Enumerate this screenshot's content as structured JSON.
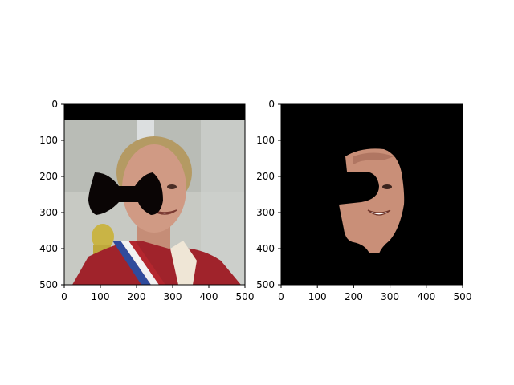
{
  "figure": {
    "background": "#ffffff",
    "axis_color": "#000000"
  },
  "chart_data": [
    {
      "type": "image",
      "panel": "left",
      "content": "portrait-photo-with-mask",
      "xlim": [
        0,
        500
      ],
      "ylim": [
        500,
        0
      ],
      "xticks": [
        0,
        100,
        200,
        300,
        400,
        500
      ],
      "yticks": [
        0,
        100,
        200,
        300,
        400,
        500
      ],
      "xtick_labels": [
        "0",
        "100",
        "200",
        "300",
        "400",
        "500"
      ],
      "ytick_labels": [
        "0",
        "100",
        "200",
        "300",
        "400",
        "500"
      ],
      "colors": {
        "top_band": "#000000",
        "background": "#c7c9c3",
        "pillar": "#dcdfe0",
        "skin": "#d09a84",
        "hair": "#b49a63",
        "jersey": "#a0232b",
        "stripe_blue": "#2f4b9c",
        "stripe_white": "#f2f2f2",
        "mask": "#0a0505"
      },
      "mask_shape": "bowtie"
    },
    {
      "type": "image",
      "panel": "right",
      "content": "segmented-face",
      "xlim": [
        0,
        500
      ],
      "ylim": [
        500,
        0
      ],
      "xticks": [
        0,
        100,
        200,
        300,
        400,
        500
      ],
      "yticks": [
        0,
        100,
        200,
        300,
        400,
        500
      ],
      "xtick_labels": [
        "0",
        "100",
        "200",
        "300",
        "400",
        "500"
      ],
      "ytick_labels": [
        "0",
        "100",
        "200",
        "300",
        "400",
        "500"
      ],
      "colors": {
        "background": "#000000",
        "face": "#c98f78",
        "face_shadow": "#9a6250"
      }
    }
  ]
}
